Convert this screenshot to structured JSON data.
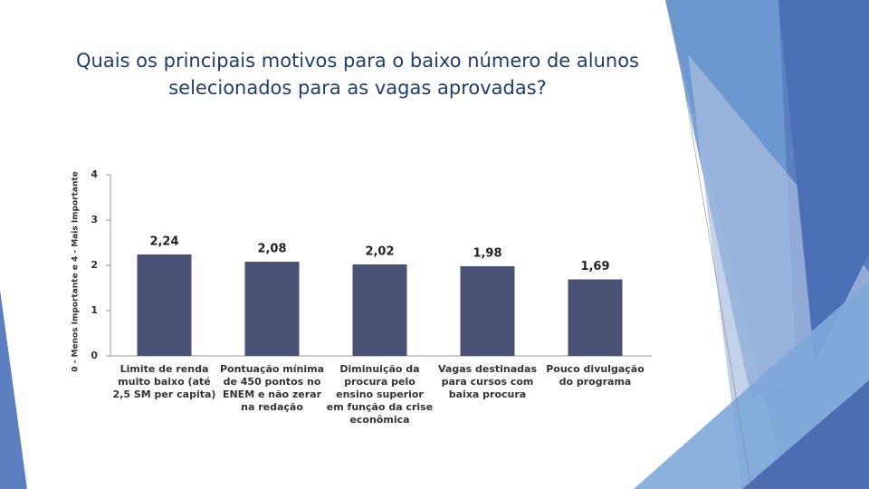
{
  "chart_data": {
    "type": "bar",
    "title": "Quais os principais motivos para o baixo número de alunos selecionados para as vagas aprovadas?",
    "y_label": "0 - Menos Importante e 4 - Mais Importante",
    "categories": [
      "Limite de renda muito baixo (até 2,5 SM per capita)",
      "Pontuação mínima de 450 pontos no ENEM e não zerar na redação",
      "Diminuição da procura pelo ensino superior em função da crise econômica",
      "Vagas destinadas para cursos com baixa procura",
      "Pouco divulgação do programa"
    ],
    "values": [
      2.24,
      2.08,
      2.02,
      1.98,
      1.69
    ],
    "value_labels": [
      "2,24",
      "2,08",
      "2,02",
      "1,98",
      "1,69"
    ],
    "color": "#4a5275",
    "ylim": [
      0,
      4
    ],
    "yticks": [
      0,
      1,
      2,
      3,
      4
    ],
    "grid": false
  }
}
